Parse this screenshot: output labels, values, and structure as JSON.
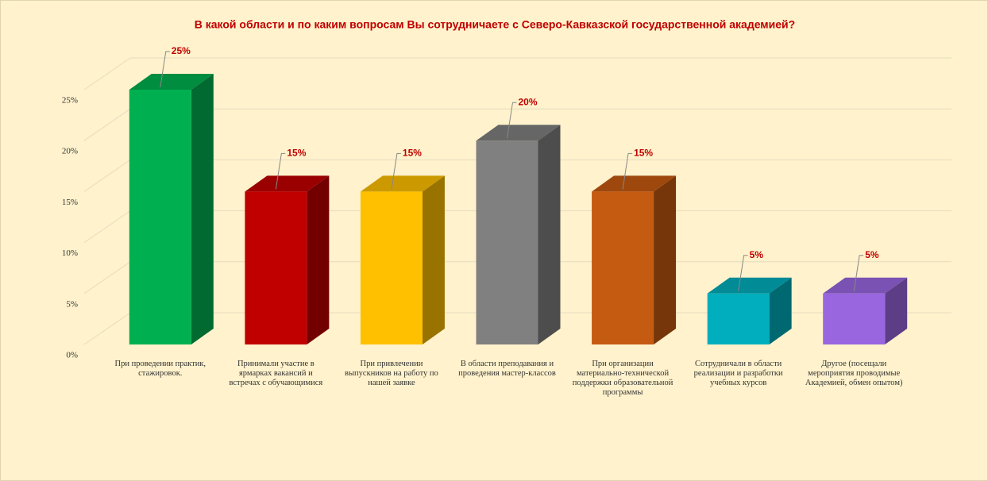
{
  "chart_data": {
    "type": "bar3d",
    "title": "В какой области и по каким вопросам Вы сотрудничаете с Северо-Кавказской государственной академией?",
    "categories": [
      "При проведении практик, стажировок.",
      "Принимали участие в ярмарках вакансий и встречах с обучающимися",
      "При привлечении выпускников на работу по нашей заявке",
      "В области преподавания и проведения мастер-классов",
      "При организации материально-технической поддержки образовательной программы",
      "Сотрудничали в области реализации и разработки учебных курсов",
      "Другое (посещали мероприятия проводимые Академией, обмен опытом)"
    ],
    "values": [
      25,
      15,
      15,
      20,
      15,
      5,
      5
    ],
    "value_labels": [
      "25%",
      "15%",
      "15%",
      "20%",
      "15%",
      "5%",
      "5%"
    ],
    "colors": [
      "#00b050",
      "#c00000",
      "#ffc000",
      "#808080",
      "#c55a11",
      "#00aebd",
      "#9966e0"
    ],
    "ylim": [
      0,
      25
    ],
    "yticks": [
      {
        "value": 0,
        "label": "0%"
      },
      {
        "value": 5,
        "label": "5%"
      },
      {
        "value": 10,
        "label": "10%"
      },
      {
        "value": 15,
        "label": "15%"
      },
      {
        "value": 20,
        "label": "20%"
      },
      {
        "value": 25,
        "label": "25%"
      }
    ],
    "grid": true
  }
}
